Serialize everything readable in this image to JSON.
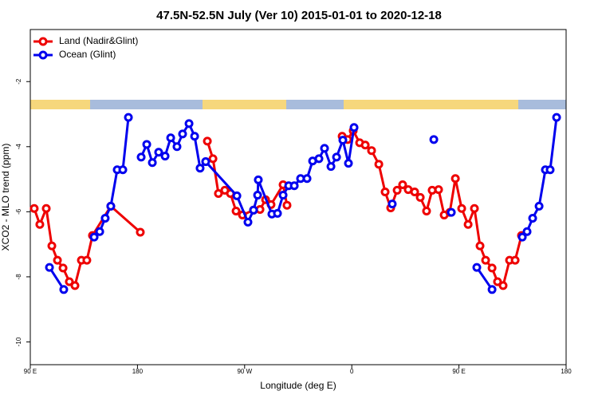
{
  "chart_data": {
    "type": "line",
    "title": "47.5N-52.5N July (Ver 10)   2015-01-01 to 2020-12-18",
    "x_label": "Longitude (deg E)",
    "y_label": "XCO2 - MLO trend (ppm)",
    "xlim": [
      90,
      540
    ],
    "ylim": [
      -10.7,
      -0.4
    ],
    "xticks": [
      {
        "value": 90,
        "label": "90 E"
      },
      {
        "value": 180,
        "label": "180"
      },
      {
        "value": 270,
        "label": "90 W"
      },
      {
        "value": 360,
        "label": "0"
      },
      {
        "value": 450,
        "label": "90 E"
      },
      {
        "value": 540,
        "label": "180"
      }
    ],
    "yticks": [
      -10,
      -8,
      -6,
      -4,
      -2
    ],
    "legend": "upper left",
    "grid": false,
    "series": [
      {
        "name": "Land (Nadir&Glint)",
        "color": "#ee0000",
        "x": [
          93.3,
          98.0,
          103.4,
          108.1,
          112.8,
          117.5,
          122.8,
          127.5,
          132.9,
          137.5,
          142.2,
          157.6,
          182.4,
          null,
          238.7,
          243.4,
          248.0,
          253.4,
          258.1,
          262.8,
          268.2,
          277.5,
          282.9,
          287.6,
          292.2,
          302.3,
          305.6,
          null,
          351.9,
          356.5,
          361.2,
          366.6,
          371.3,
          376.6,
          382.7,
          388.0,
          392.7,
          398.1,
          402.7,
          407.4,
          412.8,
          417.5,
          422.8,
          427.5,
          432.9,
          437.6,
          442.3,
          447.0,
          452.3,
          457.7,
          463.0,
          467.7,
          472.4,
          477.8,
          482.4,
          487.1,
          492.5,
          497.2,
          502.5
        ],
        "values": [
          -5.9,
          -6.39,
          -5.9,
          -7.05,
          -7.49,
          -7.73,
          -8.15,
          -8.27,
          -7.49,
          -7.49,
          -6.73,
          -5.83,
          -6.63,
          null,
          -3.83,
          -4.37,
          -5.44,
          -5.34,
          -5.44,
          -5.98,
          -6.1,
          -5.95,
          -5.93,
          -5.63,
          -5.78,
          -5.17,
          -5.8,
          null,
          -3.68,
          -3.78,
          -3.51,
          -3.88,
          -3.95,
          -4.12,
          -4.54,
          -5.39,
          -5.88,
          -5.34,
          -5.17,
          -5.32,
          -5.39,
          -5.56,
          -5.98,
          -5.34,
          -5.32,
          -6.1,
          -6.02,
          -4.98,
          -5.9,
          -6.39,
          -5.9,
          -7.05,
          -7.49,
          -7.73,
          -8.15,
          -8.27,
          -7.49,
          -7.49,
          -6.73
        ]
      },
      {
        "name": "Ocean (Glint)",
        "color": "#0000ee",
        "x": [
          106.1,
          118.1,
          null,
          143.6,
          148.3,
          152.9,
          157.6,
          163.0,
          167.7,
          172.4,
          null,
          183.1,
          187.8,
          192.5,
          197.8,
          203.2,
          207.9,
          213.2,
          217.9,
          223.3,
          228.0,
          232.6,
          237.3,
          263.5,
          272.8,
          277.5,
          280.9,
          281.5,
          292.9,
          297.6,
          302.3,
          307.0,
          311.7,
          317.0,
          322.4,
          327.1,
          332.4,
          337.1,
          342.5,
          347.2,
          352.5,
          357.2,
          361.9,
          null,
          394.0,
          null,
          428.9,
          null,
          443.6,
          null,
          465.0,
          477.8,
          null,
          503.2,
          507.2,
          511.9,
          517.3,
          522.6,
          526.6,
          532.0
        ],
        "values": [
          -7.71,
          -8.39,
          null,
          -6.78,
          -6.61,
          -6.2,
          -5.83,
          -4.71,
          -4.71,
          -3.1,
          null,
          -4.32,
          -3.93,
          -4.49,
          -4.17,
          -4.29,
          -3.73,
          -4.0,
          -3.61,
          -3.29,
          -3.68,
          -4.66,
          -4.46,
          -5.51,
          -6.32,
          -5.95,
          -5.49,
          -5.02,
          -6.07,
          -6.05,
          -5.49,
          -5.2,
          -5.2,
          -4.98,
          -4.98,
          -4.44,
          -4.37,
          -4.05,
          -4.61,
          -4.32,
          -3.8,
          -4.51,
          -3.41,
          null,
          -5.76,
          null,
          -3.78,
          null,
          -6.02,
          null,
          -7.71,
          -8.39,
          null,
          -6.78,
          -6.61,
          -6.2,
          -5.83,
          -4.71,
          -4.71,
          -3.1
        ]
      }
    ]
  }
}
